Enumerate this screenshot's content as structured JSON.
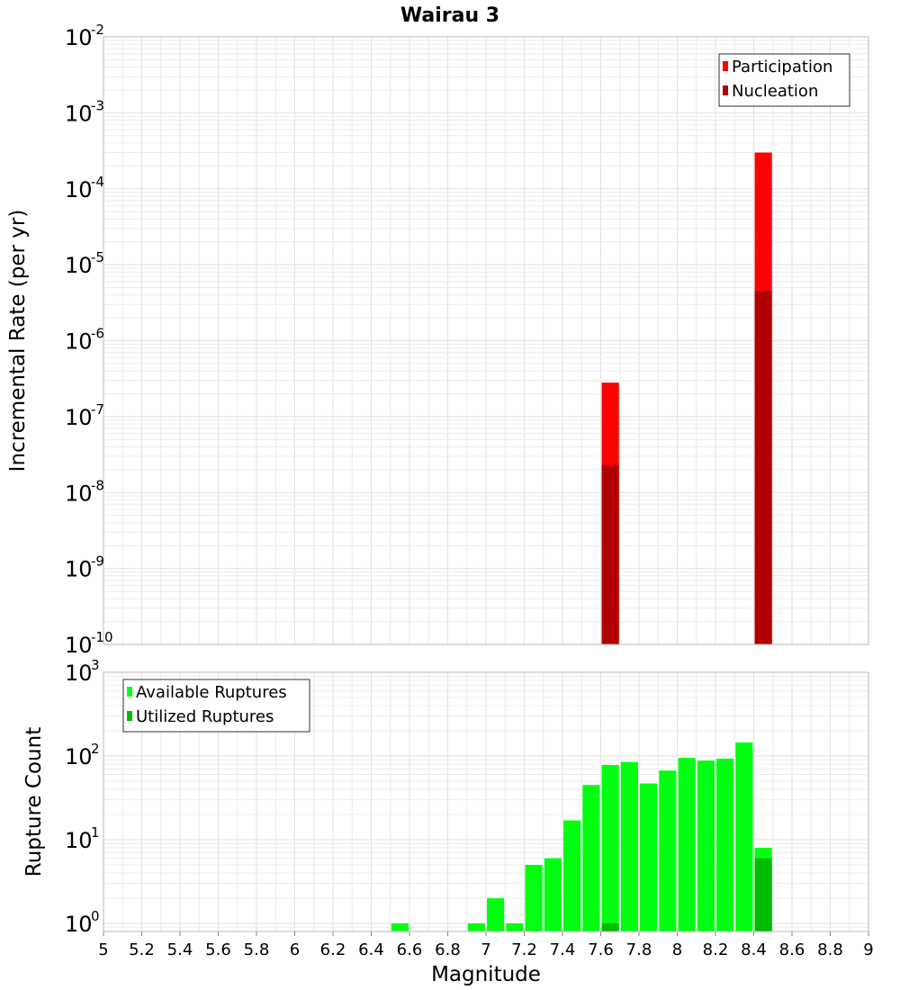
{
  "title": "Wairau 3",
  "colors": {
    "participation": "#ff0000",
    "nucleation": "#b00000",
    "available": "#00ff11",
    "utilized": "#00bb00"
  },
  "chart_data": [
    {
      "type": "bar",
      "ylabel": "Incremental Rate (per yr)",
      "yscale": "log",
      "ylim": [
        1e-10,
        0.01
      ],
      "xlim": [
        5,
        9
      ],
      "legend_position": "top-right",
      "y_ticks": [
        {
          "base": "10",
          "exp": "-10"
        },
        {
          "base": "10",
          "exp": "-9"
        },
        {
          "base": "10",
          "exp": "-8"
        },
        {
          "base": "10",
          "exp": "-7"
        },
        {
          "base": "10",
          "exp": "-6"
        },
        {
          "base": "10",
          "exp": "-5"
        },
        {
          "base": "10",
          "exp": "-4"
        },
        {
          "base": "10",
          "exp": "-3"
        },
        {
          "base": "10",
          "exp": "-2"
        }
      ],
      "series": [
        {
          "name": "Participation",
          "x": [
            7.65,
            8.45
          ],
          "values": [
            2.8e-07,
            0.0003
          ]
        },
        {
          "name": "Nucleation",
          "x": [
            7.65,
            8.45
          ],
          "values": [
            2.3e-08,
            4.5e-06
          ]
        }
      ]
    },
    {
      "type": "bar",
      "xlabel": "Magnitude",
      "ylabel": "Rupture Count",
      "yscale": "log",
      "ylim": [
        0.8,
        1000
      ],
      "xlim": [
        5,
        9
      ],
      "legend_position": "top-left",
      "y_ticks": [
        {
          "base": "10",
          "exp": "0"
        },
        {
          "base": "10",
          "exp": "1"
        },
        {
          "base": "10",
          "exp": "2"
        },
        {
          "base": "10",
          "exp": "3"
        }
      ],
      "x_ticks": [
        "5",
        "5.2",
        "5.4",
        "5.6",
        "5.8",
        "6",
        "6.2",
        "6.4",
        "6.6",
        "6.8",
        "7",
        "7.2",
        "7.4",
        "7.6",
        "7.8",
        "8",
        "8.2",
        "8.4",
        "8.6",
        "8.8",
        "9"
      ],
      "series": [
        {
          "name": "Available Ruptures",
          "x": [
            6.55,
            6.95,
            7.05,
            7.15,
            7.25,
            7.35,
            7.45,
            7.55,
            7.65,
            7.75,
            7.85,
            7.95,
            8.05,
            8.15,
            8.25,
            8.35,
            8.45
          ],
          "values": [
            1,
            1,
            2,
            1,
            5,
            6,
            17,
            45,
            78,
            85,
            47,
            67,
            95,
            88,
            93,
            145,
            8
          ]
        },
        {
          "name": "Utilized Ruptures",
          "x": [
            7.65,
            8.45
          ],
          "values": [
            1,
            6
          ]
        }
      ]
    }
  ]
}
